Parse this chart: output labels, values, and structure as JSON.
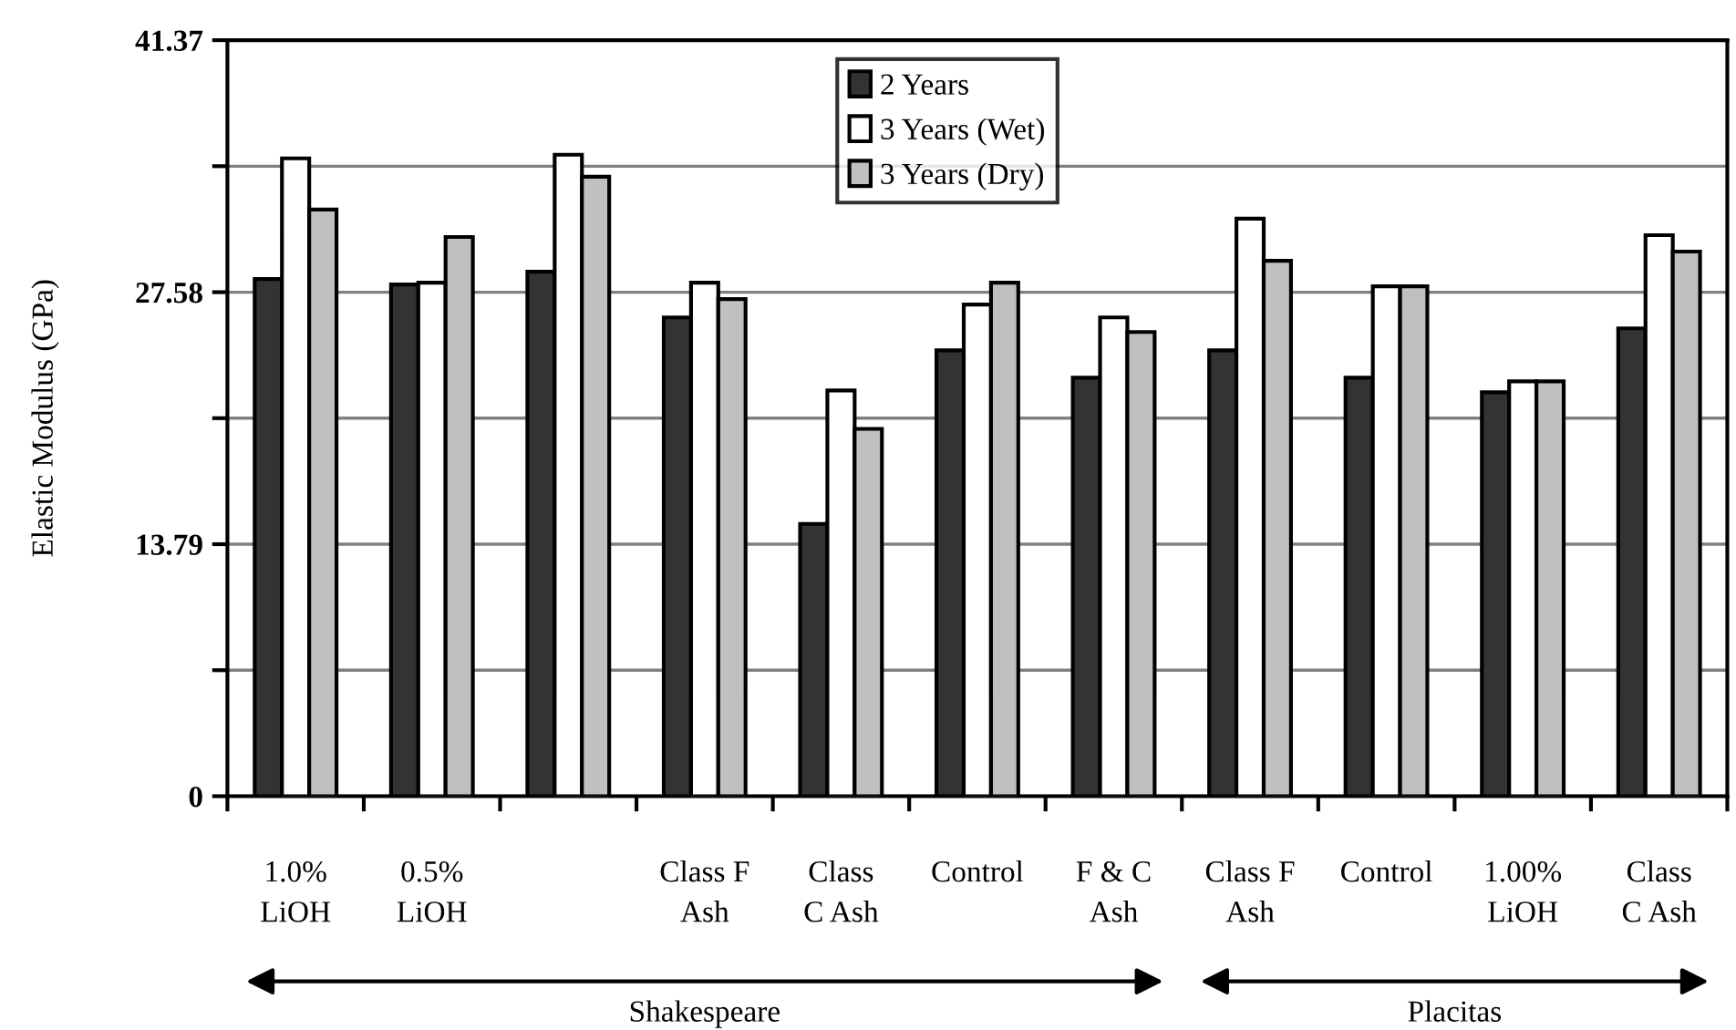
{
  "chart_data": {
    "type": "bar",
    "ylabel": "Elastic Modulus (GPa)",
    "categories": [
      "1.0%\nLiOH",
      "0.5%\nLiOH",
      null,
      "Class F\nAsh",
      "Class\nC Ash",
      "Control",
      "F & C\nAsh",
      "Class F\nAsh",
      "Control",
      "1.00%\nLiOH",
      "Class\nC Ash"
    ],
    "series": [
      {
        "name": "2 Years",
        "color": "#333333",
        "values": [
          28.3,
          28.0,
          28.7,
          26.2,
          14.9,
          24.4,
          22.9,
          24.4,
          22.9,
          22.1,
          25.6
        ]
      },
      {
        "name": "3 Years (Wet)",
        "color": "#ffffff",
        "values": [
          34.9,
          28.1,
          35.1,
          28.1,
          22.2,
          26.9,
          26.2,
          31.6,
          27.9,
          22.7,
          30.7
        ]
      },
      {
        "name": "3 Years (Dry)",
        "color": "#c0c0c0",
        "values": [
          32.1,
          30.6,
          33.9,
          27.2,
          20.1,
          28.1,
          25.4,
          29.3,
          27.9,
          22.7,
          29.8
        ]
      }
    ],
    "ylim": [
      0,
      41.37
    ],
    "yticks": [
      0,
      {
        "value": 6.895,
        "label": null
      },
      13.79,
      {
        "value": 20.685,
        "label": null
      },
      27.58,
      {
        "value": 34.475,
        "label": null
      },
      41.37
    ],
    "grid": "y",
    "legend": "top center",
    "annotations": [
      "Shakespeare",
      "Placitas"
    ]
  }
}
